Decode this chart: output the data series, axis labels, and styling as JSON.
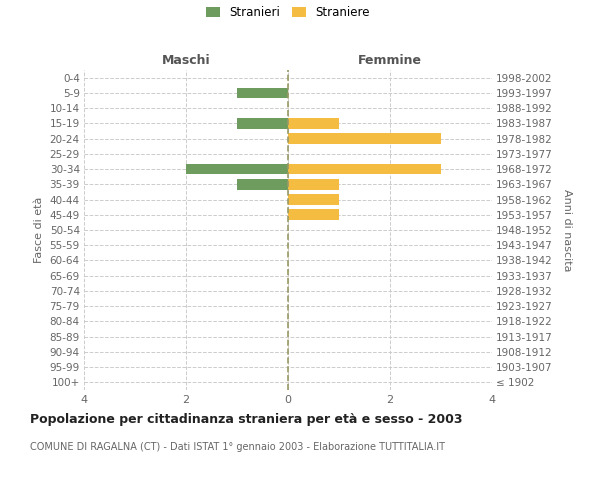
{
  "age_groups": [
    "100+",
    "95-99",
    "90-94",
    "85-89",
    "80-84",
    "75-79",
    "70-74",
    "65-69",
    "60-64",
    "55-59",
    "50-54",
    "45-49",
    "40-44",
    "35-39",
    "30-34",
    "25-29",
    "20-24",
    "15-19",
    "10-14",
    "5-9",
    "0-4"
  ],
  "birth_years": [
    "≤ 1902",
    "1903-1907",
    "1908-1912",
    "1913-1917",
    "1918-1922",
    "1923-1927",
    "1928-1932",
    "1933-1937",
    "1938-1942",
    "1943-1947",
    "1948-1952",
    "1953-1957",
    "1958-1962",
    "1963-1967",
    "1968-1972",
    "1973-1977",
    "1978-1982",
    "1983-1987",
    "1988-1992",
    "1993-1997",
    "1998-2002"
  ],
  "males": [
    0,
    0,
    0,
    0,
    0,
    0,
    0,
    0,
    0,
    0,
    0,
    0,
    0,
    1,
    2,
    0,
    0,
    1,
    0,
    1,
    0
  ],
  "females": [
    0,
    0,
    0,
    0,
    0,
    0,
    0,
    0,
    0,
    0,
    0,
    1,
    1,
    1,
    3,
    0,
    3,
    1,
    0,
    0,
    0
  ],
  "male_color": "#6e9b5e",
  "female_color": "#f5bc42",
  "background_color": "#ffffff",
  "grid_color": "#cccccc",
  "center_line_color": "#999966",
  "title": "Popolazione per cittadinanza straniera per età e sesso - 2003",
  "subtitle": "COMUNE DI RAGALNA (CT) - Dati ISTAT 1° gennaio 2003 - Elaborazione TUTTITALIA.IT",
  "ylabel_left": "Fasce di età",
  "ylabel_right": "Anni di nascita",
  "xlabel_maschi": "Maschi",
  "xlabel_femmine": "Femmine",
  "legend_stranieri": "Stranieri",
  "legend_straniere": "Straniere",
  "xlim": 4,
  "bar_height": 0.7
}
